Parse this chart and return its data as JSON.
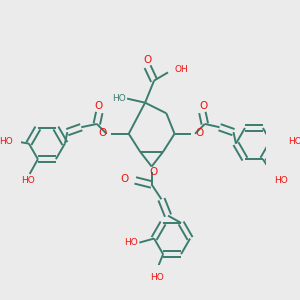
{
  "bg_color": "#EBEBEB",
  "bond_color": "#3A7D6E",
  "O_color": "#EE1111",
  "lw": 1.4,
  "dbo": 0.01,
  "figsize": [
    3.0,
    3.0
  ],
  "dpi": 100,
  "xlim": [
    0,
    300
  ],
  "ylim": [
    0,
    300
  ]
}
